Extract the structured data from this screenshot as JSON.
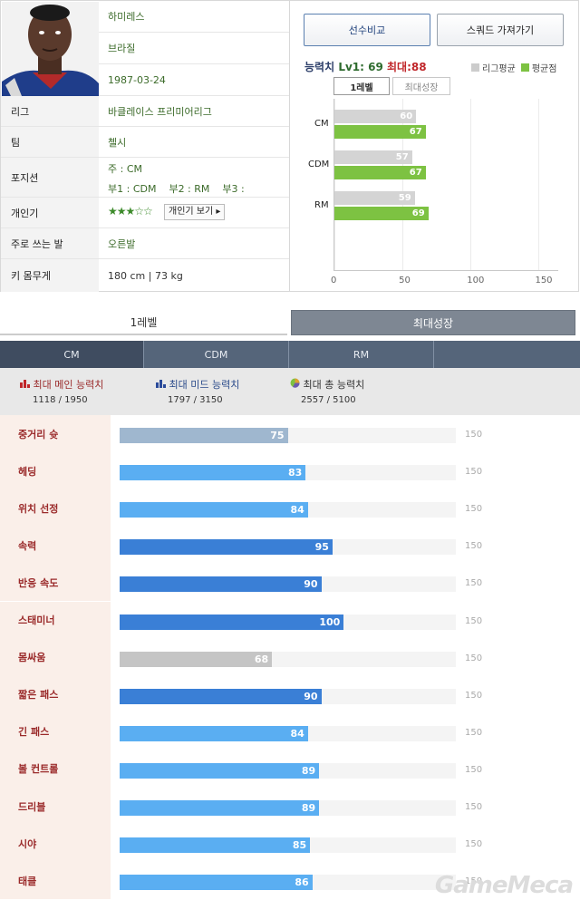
{
  "profile": {
    "name": "하미레스",
    "nationality": "브라질",
    "birthdate": "1987-03-24",
    "rows": [
      {
        "label": "리그",
        "value": "바클레이스 프리미어리그"
      },
      {
        "label": "팀",
        "value": "첼시"
      },
      {
        "label": "포지션",
        "value": ""
      },
      {
        "label": "개인기",
        "value": ""
      },
      {
        "label": "주로 쓰는 발",
        "value": "오른발"
      },
      {
        "label": "키 몸무게",
        "value": "180 cm | 73 kg"
      }
    ],
    "position_main": "주 : CM",
    "position_sub": "부1 : CDM    부2 : RM    부3 :",
    "skill_stars": "★★★☆☆",
    "skill_button": "개인기 보기 ▸"
  },
  "stats_panel": {
    "compare_button": "선수비교",
    "squad_button": "스쿼드 가져가기",
    "ability_label": "능력치",
    "lv1_text": "Lv1: 69",
    "max_text": "최대:88",
    "legend": [
      {
        "name": "리그평균",
        "color": "#cccccc"
      },
      {
        "name": "평균점",
        "color": "#7dc242"
      }
    ],
    "tabs": [
      "1레벨",
      "최대성장"
    ],
    "chart_data": {
      "type": "bar",
      "categories": [
        "CM",
        "CDM",
        "RM"
      ],
      "series": [
        {
          "name": "리그평균",
          "values": [
            60,
            57,
            59
          ],
          "color": "#d4d4d4"
        },
        {
          "name": "평균점",
          "values": [
            67,
            67,
            69
          ],
          "color": "#7dc242"
        }
      ],
      "xlim": [
        0,
        165
      ],
      "ticks": [
        "0",
        "50",
        "100",
        "150"
      ],
      "tick_values": [
        0,
        50,
        100,
        150
      ]
    }
  },
  "bottom_tabs": [
    "1레벨",
    "최대성장"
  ],
  "position_tabs": [
    "CM",
    "CDM",
    "RM",
    ""
  ],
  "summary": [
    {
      "label": "최대 메인 능력치",
      "value": "1118 / 1950",
      "color": "#9a2a2a",
      "icon": "bar-chart-icon"
    },
    {
      "label": "최대 미드 능력치",
      "value": "1797 / 3150",
      "color": "#2a4a8a",
      "icon": "bar-chart-icon"
    },
    {
      "label": "최대 총 능력치",
      "value": "2557 / 5100",
      "color": "#333333",
      "icon": "pie-chart-icon"
    }
  ],
  "attributes": [
    {
      "name": "중거리 슛",
      "value": 75,
      "color": "#9fb7cf"
    },
    {
      "name": "헤딩",
      "value": 83,
      "color": "#5aaef2"
    },
    {
      "name": "위치 선정",
      "value": 84,
      "color": "#5aaef2"
    },
    {
      "name": "속력",
      "value": 95,
      "color": "#3a7fd6"
    },
    {
      "name": "반응 속도",
      "value": 90,
      "color": "#3a7fd6"
    },
    {
      "name": "스태미너",
      "value": 100,
      "color": "#3a7fd6"
    },
    {
      "name": "몸싸움",
      "value": 68,
      "color": "#c5c5c5"
    },
    {
      "name": "짧은 패스",
      "value": 90,
      "color": "#3a7fd6"
    },
    {
      "name": "긴 패스",
      "value": 84,
      "color": "#5aaef2"
    },
    {
      "name": "볼 컨트롤",
      "value": 89,
      "color": "#5aaef2"
    },
    {
      "name": "드리블",
      "value": 89,
      "color": "#5aaef2"
    },
    {
      "name": "시야",
      "value": 85,
      "color": "#5aaef2"
    },
    {
      "name": "태클",
      "value": 86,
      "color": "#5aaef2"
    }
  ],
  "attribute_max": "150",
  "attribute_max_value": 150,
  "watermark": "GameMeca"
}
